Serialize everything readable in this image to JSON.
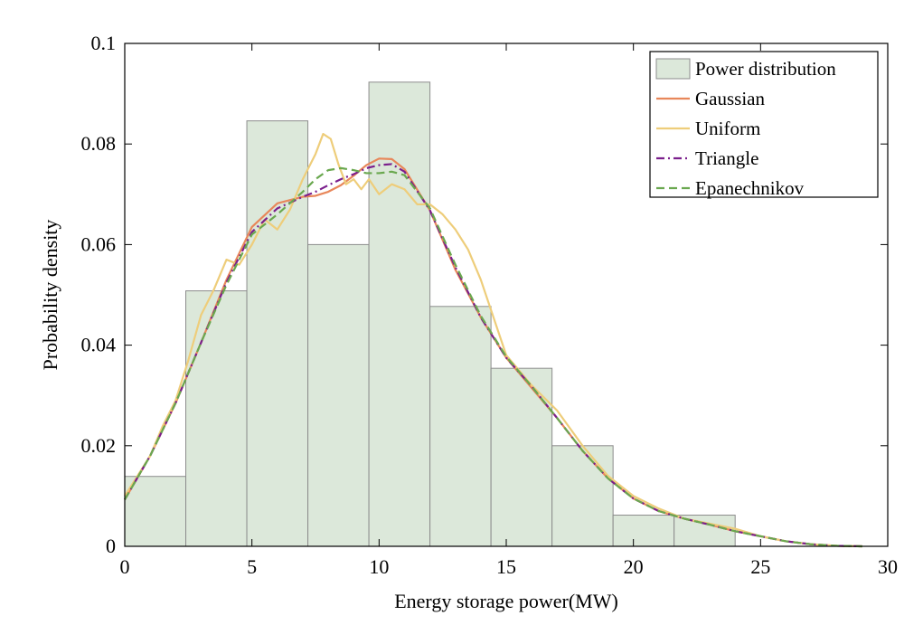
{
  "chart_data": {
    "type": "bar",
    "title": "",
    "xlabel": "Energy storage power(MW)",
    "ylabel": "Probability density",
    "xlim": [
      0,
      30
    ],
    "ylim": [
      0,
      0.1
    ],
    "xticks": [
      0,
      5,
      10,
      15,
      20,
      25,
      30
    ],
    "xtick_labels": [
      "0",
      "5",
      "10",
      "15",
      "20",
      "25",
      "30"
    ],
    "yticks": [
      0,
      0.02,
      0.04,
      0.06,
      0.08,
      0.1
    ],
    "ytick_labels": [
      "0",
      "0.02",
      "0.04",
      "0.06",
      "0.08",
      "0.1"
    ],
    "grid": false,
    "legend_position": "top-right",
    "histogram": {
      "name": "Power distribution",
      "color": "#dce8da",
      "edge_color": "#8c8c8c",
      "bin_edges": [
        0,
        2.4,
        4.8,
        7.2,
        9.6,
        12.0,
        14.4,
        16.8,
        19.2,
        21.6,
        24.0
      ],
      "values": [
        0.0139,
        0.0508,
        0.0846,
        0.06,
        0.0923,
        0.0477,
        0.0354,
        0.02,
        0.0062,
        0.0062
      ]
    },
    "series": [
      {
        "name": "Gaussian",
        "type": "line",
        "color": "#e8875a",
        "dash": "solid",
        "x": [
          0,
          1,
          2,
          3,
          4,
          5,
          6,
          7,
          7.5,
          8,
          8.5,
          9,
          9.5,
          10,
          10.5,
          11,
          12,
          13,
          14,
          15,
          16,
          17,
          18,
          19,
          20,
          21,
          22,
          23,
          24,
          25,
          26,
          27,
          28,
          29
        ],
        "y": [
          0.0093,
          0.018,
          0.0285,
          0.0405,
          0.053,
          0.0635,
          0.0682,
          0.0695,
          0.0697,
          0.0705,
          0.0718,
          0.0737,
          0.0758,
          0.0771,
          0.077,
          0.075,
          0.0668,
          0.055,
          0.0455,
          0.0375,
          0.0315,
          0.0255,
          0.019,
          0.0135,
          0.0095,
          0.007,
          0.0055,
          0.0043,
          0.003,
          0.002,
          0.001,
          0.0004,
          0.0001,
          0.0
        ]
      },
      {
        "name": "Uniform",
        "type": "line",
        "color": "#eecd7a",
        "dash": "solid",
        "x": [
          0,
          0.5,
          1,
          1.5,
          2,
          2.5,
          3,
          3.5,
          4,
          4.5,
          5,
          5.5,
          6,
          6.5,
          7,
          7.5,
          7.8,
          8.1,
          8.4,
          8.7,
          9,
          9.3,
          9.6,
          10,
          10.5,
          11,
          11.5,
          12,
          12.5,
          13,
          13.5,
          14,
          15,
          16,
          17,
          18,
          19,
          20,
          21,
          22,
          23,
          24,
          25,
          26,
          27,
          28,
          29
        ],
        "y": [
          0.01,
          0.014,
          0.018,
          0.024,
          0.029,
          0.037,
          0.046,
          0.051,
          0.057,
          0.056,
          0.06,
          0.065,
          0.063,
          0.067,
          0.073,
          0.078,
          0.082,
          0.081,
          0.076,
          0.072,
          0.073,
          0.071,
          0.073,
          0.07,
          0.072,
          0.071,
          0.068,
          0.068,
          0.066,
          0.063,
          0.059,
          0.053,
          0.038,
          0.032,
          0.027,
          0.02,
          0.014,
          0.01,
          0.0075,
          0.0055,
          0.0045,
          0.0035,
          0.002,
          0.001,
          0.0004,
          0.0001,
          0.0
        ]
      },
      {
        "name": "Triangle",
        "type": "line",
        "color": "#7b1f8c",
        "dash": "dashdot",
        "x": [
          0,
          1,
          2,
          3,
          4,
          5,
          6,
          7,
          7.5,
          8,
          8.5,
          9,
          9.5,
          10,
          10.5,
          11,
          12,
          13,
          14,
          15,
          16,
          17,
          18,
          19,
          20,
          21,
          22,
          23,
          24,
          25,
          26,
          27,
          28,
          29
        ],
        "y": [
          0.0093,
          0.018,
          0.0285,
          0.0405,
          0.0525,
          0.0625,
          0.0672,
          0.0695,
          0.0705,
          0.0718,
          0.073,
          0.074,
          0.0752,
          0.0758,
          0.076,
          0.0745,
          0.0668,
          0.0555,
          0.0455,
          0.0375,
          0.0318,
          0.0255,
          0.019,
          0.0135,
          0.0095,
          0.007,
          0.0055,
          0.0043,
          0.003,
          0.002,
          0.001,
          0.0004,
          0.0001,
          0.0
        ]
      },
      {
        "name": "Epanechnikov",
        "type": "line",
        "color": "#6aa84f",
        "dash": "dashed",
        "x": [
          0,
          1,
          2,
          3,
          4,
          5,
          6,
          7,
          7.5,
          8,
          8.5,
          9,
          9.5,
          10,
          10.5,
          11,
          12,
          13,
          14,
          15,
          16,
          17,
          18,
          19,
          20,
          21,
          22,
          23,
          24,
          25,
          26,
          27,
          28,
          29
        ],
        "y": [
          0.0093,
          0.018,
          0.0285,
          0.0405,
          0.052,
          0.062,
          0.066,
          0.0705,
          0.073,
          0.0748,
          0.0752,
          0.0748,
          0.0742,
          0.0742,
          0.0745,
          0.0738,
          0.0672,
          0.056,
          0.0458,
          0.0377,
          0.0318,
          0.0255,
          0.019,
          0.0135,
          0.0095,
          0.007,
          0.0055,
          0.0043,
          0.003,
          0.002,
          0.001,
          0.0004,
          0.0001,
          0.0
        ]
      }
    ]
  }
}
